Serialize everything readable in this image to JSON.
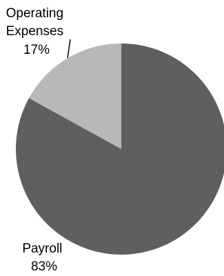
{
  "chart_data": {
    "type": "pie",
    "slices": [
      {
        "label": "Operating Expenses",
        "label_lines": [
          "Operating",
          "Expenses"
        ],
        "value": 17,
        "value_label": "17%",
        "color": "#b8b8b8"
      },
      {
        "label": "Payroll",
        "label_lines": [
          "Payroll"
        ],
        "value": 83,
        "value_label": "83%",
        "color": "#5f5f5f"
      }
    ],
    "start": "12 o'clock",
    "direction": "counterclockwise",
    "legend": "none"
  }
}
